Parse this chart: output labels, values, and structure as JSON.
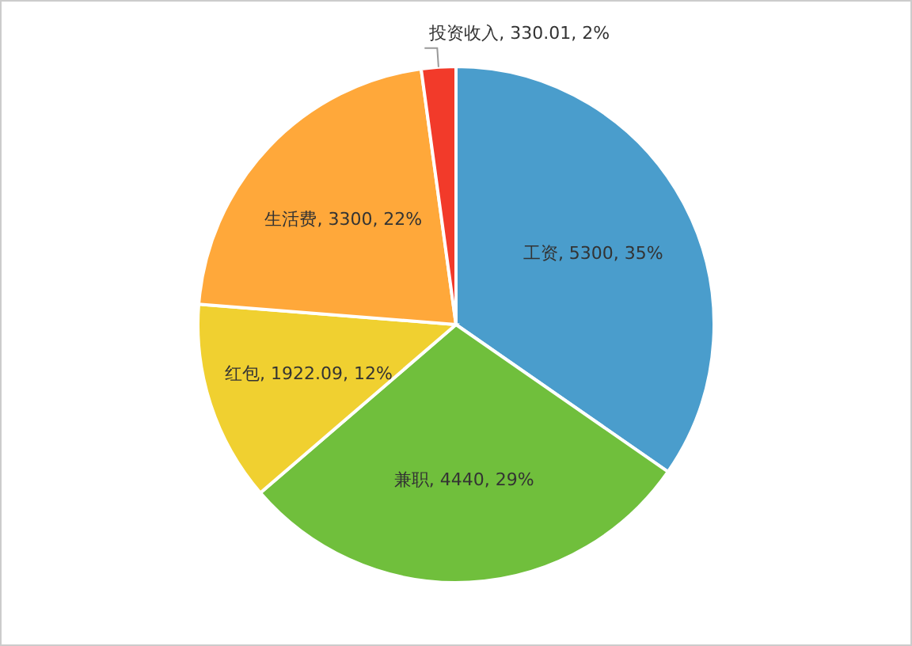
{
  "chart_data": {
    "type": "pie",
    "categories": [
      "工资",
      "兼职",
      "红包",
      "生活费",
      "投资收入"
    ],
    "values": [
      5300,
      4440,
      1922.09,
      3300,
      330.01
    ],
    "value_labels": [
      "5300, 35%",
      "4440, 29%",
      "1922.09, 12%",
      "3300, 22%",
      "330.01, 2%"
    ],
    "colors": [
      "#4a9dcc",
      "#70bf3c",
      "#f0d030",
      "#ffa83a",
      "#f23a2a"
    ]
  }
}
